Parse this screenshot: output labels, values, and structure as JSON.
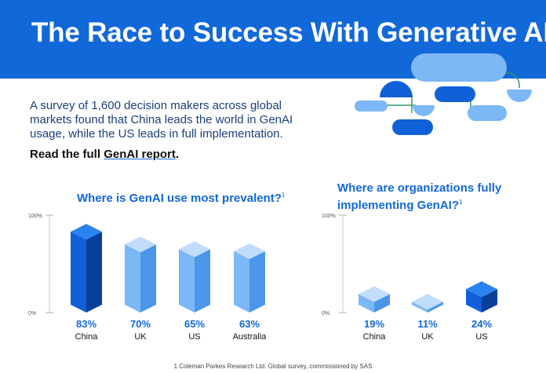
{
  "header": {
    "title": "The Race to Success With Generative AI"
  },
  "intro": {
    "text": "A survey of 1,600 decision makers across global markets found that China leads the world in GenAI usage, while the US leads in full implementation.",
    "read_prefix": "Read the full ",
    "read_link": "GenAI report",
    "read_suffix": "."
  },
  "colors": {
    "banner": "#1168d8",
    "dark_bar": "#1060d8",
    "light_bar": "#7cb7f6",
    "title": "#1168d8"
  },
  "chart_data": [
    {
      "type": "bar",
      "title": "Where is GenAI use most prevalent?",
      "title_sup": "1",
      "categories": [
        "China",
        "UK",
        "US",
        "Australia"
      ],
      "values": [
        83,
        70,
        65,
        63
      ],
      "value_labels": [
        "83%",
        "70%",
        "65%",
        "63%"
      ],
      "highlight": [
        "China"
      ],
      "ylim": [
        0,
        100
      ],
      "yticks": [
        "0%",
        "100%"
      ]
    },
    {
      "type": "bar",
      "title": "Where are organizations fully implementing GenAI?",
      "title_sup": "1",
      "categories": [
        "China",
        "UK",
        "US"
      ],
      "values": [
        19,
        11,
        24
      ],
      "value_labels": [
        "19%",
        "11%",
        "24%"
      ],
      "highlight": [
        "US"
      ],
      "ylim": [
        0,
        100
      ],
      "yticks": [
        "0%",
        "100%"
      ]
    }
  ],
  "footer": {
    "text": "1 Coleman Parkes Research Ltd. Global survey, commissioned by SAS"
  }
}
